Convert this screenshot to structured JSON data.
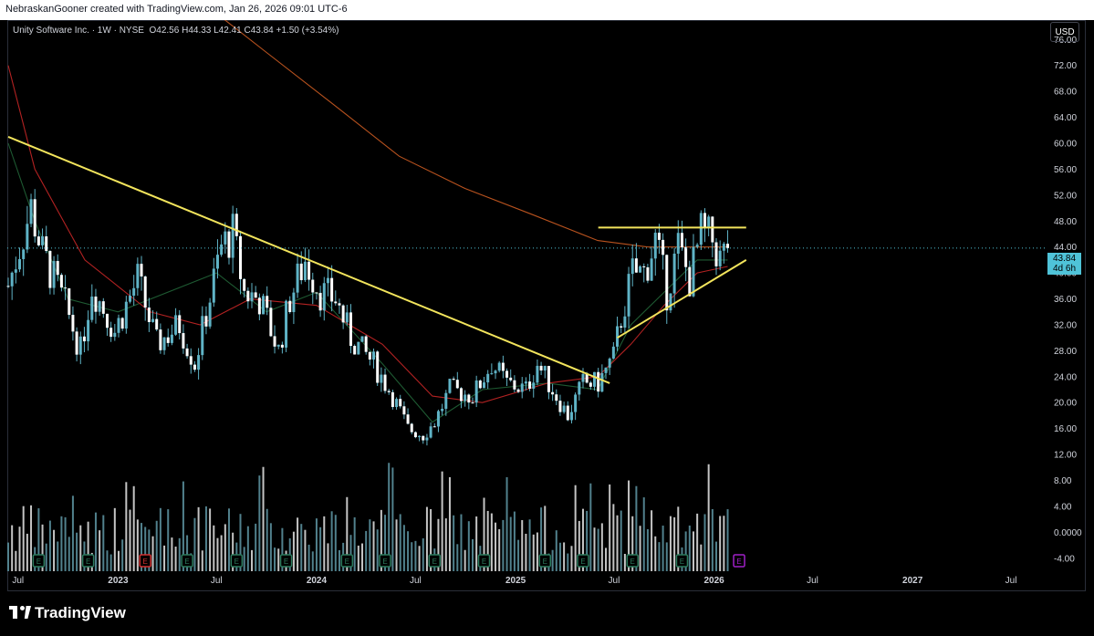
{
  "header": {
    "attribution": "NebraskanGooner created with TradingView.com, Jan 26, 2026 09:01 UTC-6"
  },
  "legend": {
    "symbol": "Unity Software Inc. · 1W · NYSE",
    "open": "O42.56",
    "high": "H44.33",
    "low": "L42.41",
    "close": "C43.84",
    "change": "+1.50 (+3.54%)"
  },
  "currency_button": "USD",
  "last_price": {
    "value": "43.84",
    "countdown": "4d 6h"
  },
  "footer": {
    "logo_text": "TradingView"
  },
  "colors": {
    "candle": "#5fb3c6",
    "volume": "#d9d9d9",
    "trendline": "#f2e45c",
    "ma_fast": "#1e5a32",
    "ma_slow": "#b22222",
    "ma_long": "#b8521e",
    "earnings_green": "#2b7a5c",
    "earnings_red": "#d23030",
    "earnings_purple": "#a020c8"
  },
  "chart_data": {
    "type": "candlestick",
    "interval": "1W",
    "x_range": [
      "2022-06-13",
      "2027-09-01"
    ],
    "y_range": [
      -6,
      79
    ],
    "y_axis_ticks": [
      "76.00",
      "72.00",
      "68.00",
      "64.00",
      "60.00",
      "56.00",
      "52.00",
      "48.00",
      "44.00",
      "40.00",
      "36.00",
      "32.00",
      "28.00",
      "24.00",
      "20.00",
      "16.00",
      "12.00",
      "8.00",
      "4.00",
      "0.0000",
      "-4.00"
    ],
    "x_axis_ticks": [
      {
        "label": "Jul",
        "date": "2022-07-01"
      },
      {
        "label": "2023",
        "date": "2023-01-01",
        "year": true
      },
      {
        "label": "Jul",
        "date": "2023-07-01"
      },
      {
        "label": "2024",
        "date": "2024-01-01",
        "year": true
      },
      {
        "label": "Jul",
        "date": "2024-07-01"
      },
      {
        "label": "2025",
        "date": "2025-01-01",
        "year": true
      },
      {
        "label": "Jul",
        "date": "2025-07-01"
      },
      {
        "label": "2026",
        "date": "2026-01-01",
        "year": true
      },
      {
        "label": "Jul",
        "date": "2026-07-01"
      },
      {
        "label": "2027",
        "date": "2027-01-01",
        "year": true
      },
      {
        "label": "Jul",
        "date": "2027-07-01"
      }
    ],
    "price_path": [
      [
        "2022-06-13",
        38
      ],
      [
        "2022-07-25",
        50
      ],
      [
        "2022-08-15",
        43
      ],
      [
        "2022-09-26",
        35
      ],
      [
        "2022-10-24",
        28
      ],
      [
        "2022-11-14",
        38
      ],
      [
        "2022-12-26",
        31
      ],
      [
        "2023-02-06",
        39
      ],
      [
        "2023-03-13",
        29
      ],
      [
        "2023-04-24",
        32
      ],
      [
        "2023-05-22",
        26
      ],
      [
        "2023-07-10",
        44
      ],
      [
        "2023-07-31",
        46
      ],
      [
        "2023-08-21",
        37
      ],
      [
        "2023-09-18",
        36
      ],
      [
        "2023-10-23",
        28
      ],
      [
        "2023-11-13",
        36
      ],
      [
        "2023-12-11",
        42
      ],
      [
        "2024-01-08",
        37
      ],
      [
        "2024-02-05",
        36
      ],
      [
        "2024-03-04",
        30
      ],
      [
        "2024-04-15",
        26
      ],
      [
        "2024-05-20",
        21
      ],
      [
        "2024-06-17",
        16
      ],
      [
        "2024-07-15",
        15
      ],
      [
        "2024-08-05",
        17
      ],
      [
        "2024-09-02",
        22
      ],
      [
        "2024-10-14",
        21
      ],
      [
        "2024-11-18",
        26
      ],
      [
        "2024-12-16",
        23
      ],
      [
        "2025-01-20",
        22
      ],
      [
        "2025-02-10",
        26
      ],
      [
        "2025-03-10",
        22
      ],
      [
        "2025-04-07",
        18
      ],
      [
        "2025-05-05",
        23
      ],
      [
        "2025-06-02",
        23
      ],
      [
        "2025-06-30",
        27
      ],
      [
        "2025-07-14",
        33
      ],
      [
        "2025-08-04",
        40
      ],
      [
        "2025-08-25",
        40
      ],
      [
        "2025-09-15",
        45
      ],
      [
        "2025-10-06",
        37
      ],
      [
        "2025-10-27",
        44
      ],
      [
        "2025-11-17",
        39
      ],
      [
        "2025-12-08",
        46
      ],
      [
        "2025-12-29",
        45
      ],
      [
        "2026-01-12",
        42
      ],
      [
        "2026-01-26",
        43.84
      ]
    ],
    "moving_averages": [
      {
        "color_key": "ma_fast",
        "points": [
          [
            "2022-06-13",
            60
          ],
          [
            "2022-08-01",
            48
          ],
          [
            "2022-10-01",
            36
          ],
          [
            "2023-01-01",
            34
          ],
          [
            "2023-07-01",
            40
          ],
          [
            "2023-10-01",
            34
          ],
          [
            "2024-01-01",
            37
          ],
          [
            "2024-05-01",
            26
          ],
          [
            "2024-08-01",
            17
          ],
          [
            "2024-11-01",
            22
          ],
          [
            "2025-03-01",
            23
          ],
          [
            "2025-06-01",
            22
          ],
          [
            "2025-08-01",
            32
          ],
          [
            "2025-10-01",
            37
          ],
          [
            "2025-12-01",
            42
          ],
          [
            "2026-01-26",
            42
          ]
        ]
      },
      {
        "color_key": "ma_slow",
        "points": [
          [
            "2022-06-13",
            72
          ],
          [
            "2022-08-01",
            56
          ],
          [
            "2022-11-01",
            42
          ],
          [
            "2023-03-01",
            34
          ],
          [
            "2023-06-01",
            32
          ],
          [
            "2023-09-01",
            36
          ],
          [
            "2024-01-01",
            35
          ],
          [
            "2024-05-01",
            29
          ],
          [
            "2024-08-01",
            21
          ],
          [
            "2024-11-01",
            20
          ],
          [
            "2025-03-01",
            23
          ],
          [
            "2025-06-01",
            24
          ],
          [
            "2025-08-01",
            29
          ],
          [
            "2025-10-01",
            35
          ],
          [
            "2025-12-01",
            40
          ],
          [
            "2026-01-26",
            41
          ]
        ]
      },
      {
        "color_key": "ma_long",
        "points": [
          [
            "2023-06-01",
            82
          ],
          [
            "2023-10-01",
            74
          ],
          [
            "2024-02-01",
            66
          ],
          [
            "2024-06-01",
            58
          ],
          [
            "2024-10-01",
            53
          ],
          [
            "2025-02-01",
            49
          ],
          [
            "2025-06-01",
            45
          ],
          [
            "2025-09-01",
            44
          ],
          [
            "2025-12-01",
            44
          ],
          [
            "2026-01-26",
            44
          ]
        ]
      }
    ],
    "trendlines": [
      {
        "name": "descending-resistance",
        "from": [
          "2022-06-13",
          61
        ],
        "to": [
          "2025-06-23",
          23
        ]
      },
      {
        "name": "horizontal-resistance",
        "from": [
          "2025-06-02",
          47
        ],
        "to": [
          "2026-03-01",
          47
        ]
      },
      {
        "name": "ascending-support",
        "from": [
          "2025-07-07",
          30
        ],
        "to": [
          "2026-03-01",
          42
        ]
      }
    ],
    "earnings": [
      {
        "date": "2022-08-08",
        "color_key": "earnings_green"
      },
      {
        "date": "2022-11-07",
        "color_key": "earnings_green"
      },
      {
        "date": "2023-02-20",
        "color_key": "earnings_red"
      },
      {
        "date": "2023-05-08",
        "color_key": "earnings_green"
      },
      {
        "date": "2023-08-07",
        "color_key": "earnings_green"
      },
      {
        "date": "2023-11-06",
        "color_key": "earnings_green"
      },
      {
        "date": "2024-02-26",
        "color_key": "earnings_green"
      },
      {
        "date": "2024-05-06",
        "color_key": "earnings_green"
      },
      {
        "date": "2024-08-05",
        "color_key": "earnings_green"
      },
      {
        "date": "2024-11-04",
        "color_key": "earnings_green"
      },
      {
        "date": "2025-02-24",
        "color_key": "earnings_green"
      },
      {
        "date": "2025-05-05",
        "color_key": "earnings_green"
      },
      {
        "date": "2025-08-04",
        "color_key": "earnings_green"
      },
      {
        "date": "2025-11-03",
        "color_key": "earnings_green"
      },
      {
        "date": "2026-02-16",
        "color_key": "earnings_purple"
      }
    ],
    "earnings_label": "E",
    "last_close": 43.84
  }
}
